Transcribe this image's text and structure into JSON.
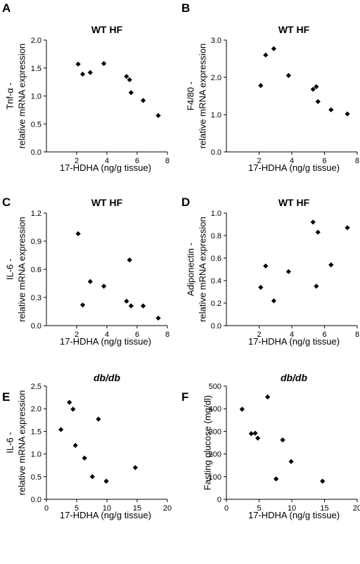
{
  "chart_data": [
    {
      "type": "scatter",
      "panel": "A",
      "title": "WT HF",
      "ylabel": [
        "Tnf-α -",
        "relative mRNA expression"
      ],
      "xlabel": "17-HDHA (ng/g tissue)",
      "xlim": [
        0,
        8
      ],
      "xticks": [
        2,
        4,
        6,
        8
      ],
      "ylim": [
        0,
        2.0
      ],
      "yticks": [
        "0.0",
        "0.5",
        "1.0",
        "1.5",
        "2.0"
      ],
      "points": [
        {
          "x": 2.1,
          "y": 1.57
        },
        {
          "x": 2.4,
          "y": 1.39
        },
        {
          "x": 2.9,
          "y": 1.42
        },
        {
          "x": 3.8,
          "y": 1.58
        },
        {
          "x": 5.3,
          "y": 1.35
        },
        {
          "x": 5.5,
          "y": 1.29
        },
        {
          "x": 5.6,
          "y": 1.06
        },
        {
          "x": 6.4,
          "y": 0.92
        },
        {
          "x": 7.4,
          "y": 0.65
        }
      ]
    },
    {
      "type": "scatter",
      "panel": "B",
      "title": "WT HF",
      "ylabel": [
        "F4/80 -",
        "relative mRNA expression"
      ],
      "xlabel": "17-HDHA (ng/g tissue)",
      "xlim": [
        0,
        8
      ],
      "xticks": [
        2,
        4,
        6,
        8
      ],
      "ylim": [
        0,
        3.0
      ],
      "yticks": [
        "0.0",
        "1.0",
        "2.0",
        "3.0"
      ],
      "points": [
        {
          "x": 2.1,
          "y": 1.78
        },
        {
          "x": 2.4,
          "y": 2.6
        },
        {
          "x": 2.9,
          "y": 2.77
        },
        {
          "x": 3.8,
          "y": 2.05
        },
        {
          "x": 5.3,
          "y": 1.68
        },
        {
          "x": 5.5,
          "y": 1.75
        },
        {
          "x": 5.6,
          "y": 1.35
        },
        {
          "x": 6.4,
          "y": 1.13
        },
        {
          "x": 7.4,
          "y": 1.02
        }
      ]
    },
    {
      "type": "scatter",
      "panel": "C",
      "title": "WT HF",
      "ylabel": [
        "IL-6 -",
        "relative mRNA expression"
      ],
      "xlabel": "17-HDHA (ng/g tissue)",
      "xlim": [
        0,
        8
      ],
      "xticks": [
        2,
        4,
        6,
        8
      ],
      "ylim": [
        0,
        1.2
      ],
      "yticks": [
        "0.0",
        "0.3",
        "0.6",
        "0.9",
        "1.2"
      ],
      "points": [
        {
          "x": 2.1,
          "y": 0.98
        },
        {
          "x": 2.4,
          "y": 0.22
        },
        {
          "x": 2.9,
          "y": 0.47
        },
        {
          "x": 3.8,
          "y": 0.42
        },
        {
          "x": 5.3,
          "y": 0.26
        },
        {
          "x": 5.5,
          "y": 0.7
        },
        {
          "x": 5.6,
          "y": 0.21
        },
        {
          "x": 6.4,
          "y": 0.21
        },
        {
          "x": 7.4,
          "y": 0.08
        }
      ]
    },
    {
      "type": "scatter",
      "panel": "D",
      "title": "WT HF",
      "ylabel": [
        "Adiponectin -",
        "relative mRNA expression"
      ],
      "xlabel": "17-HDHA (ng/g tissue)",
      "xlim": [
        0,
        8
      ],
      "xticks": [
        2,
        4,
        6,
        8
      ],
      "ylim": [
        0,
        1.0
      ],
      "yticks": [
        "0.0",
        "0.2",
        "0.4",
        "0.6",
        "0.8",
        "1.0"
      ],
      "points": [
        {
          "x": 2.1,
          "y": 0.34
        },
        {
          "x": 2.4,
          "y": 0.53
        },
        {
          "x": 2.9,
          "y": 0.22
        },
        {
          "x": 3.8,
          "y": 0.48
        },
        {
          "x": 5.3,
          "y": 0.92
        },
        {
          "x": 5.5,
          "y": 0.35
        },
        {
          "x": 5.6,
          "y": 0.83
        },
        {
          "x": 6.4,
          "y": 0.54
        },
        {
          "x": 7.4,
          "y": 0.87
        }
      ]
    },
    {
      "type": "scatter",
      "panel": "E",
      "title": "db/db",
      "title_italic": true,
      "ylabel": [
        "IL-6 -",
        "relative mRNA expression"
      ],
      "xlabel": "17-HDHA (ng/g tissue)",
      "xlim": [
        0,
        20
      ],
      "xticks": [
        0,
        5,
        10,
        15,
        20
      ],
      "ylim": [
        0,
        2.5
      ],
      "yticks": [
        "0.0",
        "0.5",
        "1.0",
        "1.5",
        "2.0",
        "2.5"
      ],
      "points": [
        {
          "x": 2.4,
          "y": 1.54
        },
        {
          "x": 3.8,
          "y": 2.14
        },
        {
          "x": 4.4,
          "y": 1.99
        },
        {
          "x": 4.8,
          "y": 1.19
        },
        {
          "x": 6.3,
          "y": 0.91
        },
        {
          "x": 7.6,
          "y": 0.5
        },
        {
          "x": 8.6,
          "y": 1.77
        },
        {
          "x": 9.9,
          "y": 0.4
        },
        {
          "x": 14.7,
          "y": 0.7
        }
      ]
    },
    {
      "type": "scatter",
      "panel": "F",
      "title": "db/db",
      "title_italic": true,
      "ylabel": [
        "Fasting glucose (mg/dl)"
      ],
      "xlabel": "17-HDHA (ng/g tissue)",
      "xlim": [
        0,
        20
      ],
      "xticks": [
        0,
        5,
        10,
        15,
        20
      ],
      "ylim": [
        0,
        500
      ],
      "yticks": [
        "0",
        "100",
        "200",
        "300",
        "400",
        "500"
      ],
      "points": [
        {
          "x": 2.4,
          "y": 398
        },
        {
          "x": 3.8,
          "y": 290
        },
        {
          "x": 4.4,
          "y": 292
        },
        {
          "x": 4.8,
          "y": 270
        },
        {
          "x": 6.3,
          "y": 452
        },
        {
          "x": 7.6,
          "y": 90
        },
        {
          "x": 8.6,
          "y": 262
        },
        {
          "x": 9.9,
          "y": 167
        },
        {
          "x": 14.7,
          "y": 80
        }
      ]
    }
  ]
}
